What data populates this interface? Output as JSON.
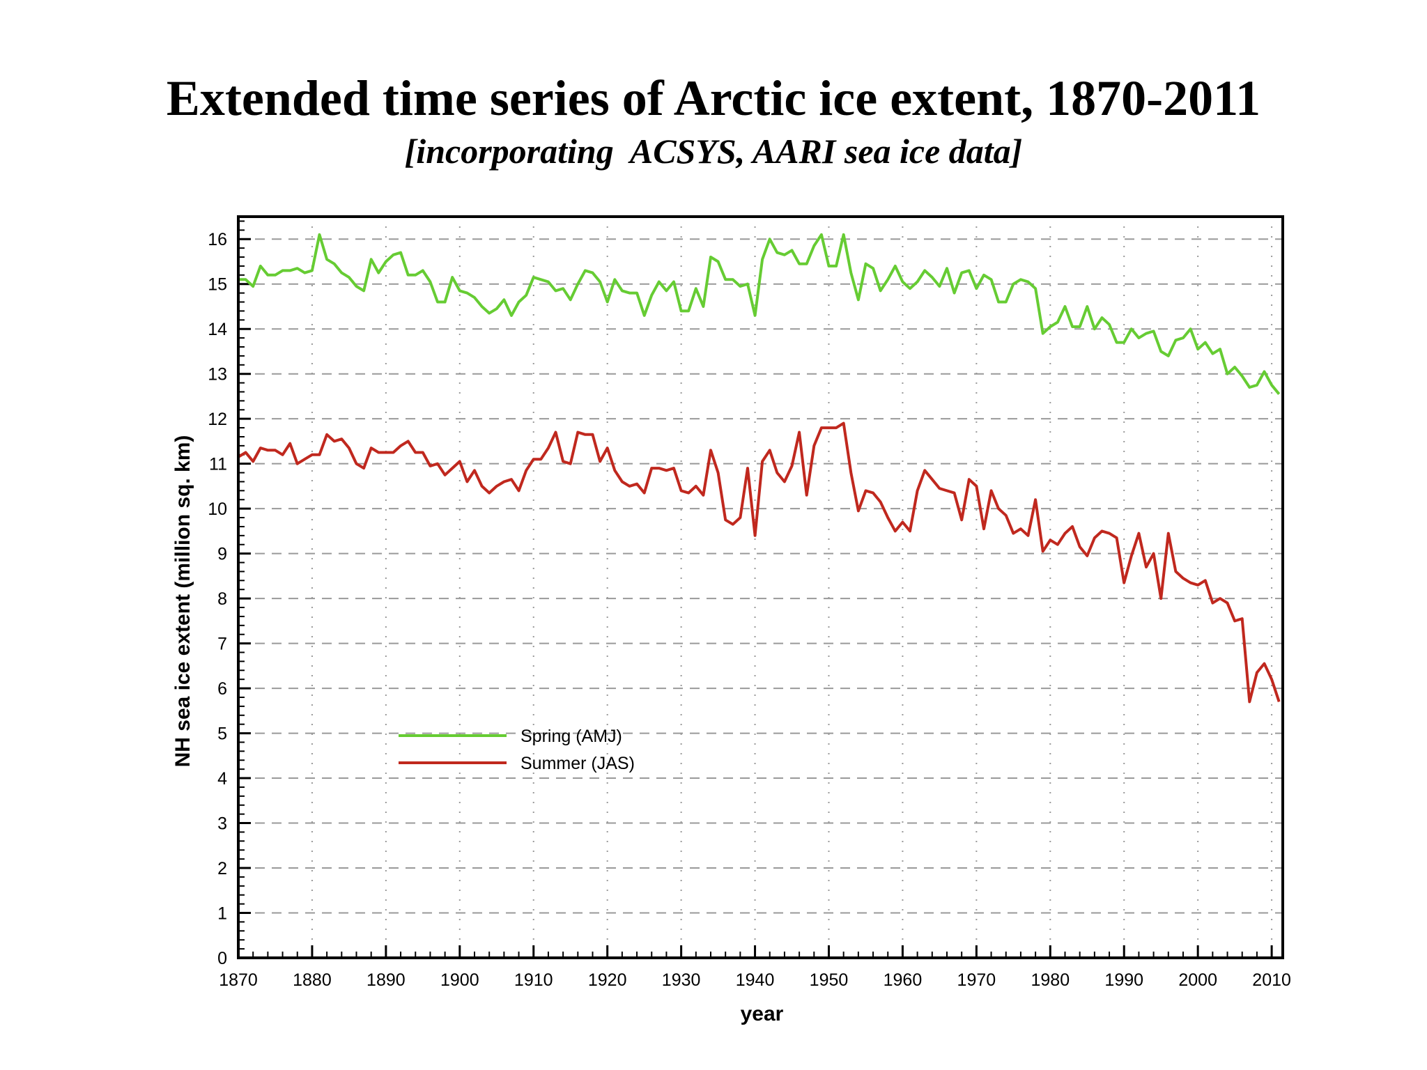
{
  "chart_data": {
    "type": "line",
    "title": "Extended time series of Arctic ice extent, 1870-2011",
    "subtitle": "[incorporating  ACSYS, AARI sea ice data]",
    "xlabel": "year",
    "ylabel": "NH sea ice extent (million sq. km)",
    "xlim": [
      1870,
      2011
    ],
    "ylim": [
      0,
      16.5
    ],
    "xticks": [
      1870,
      1880,
      1890,
      1900,
      1910,
      1920,
      1930,
      1940,
      1950,
      1960,
      1970,
      1980,
      1990,
      2000,
      2010
    ],
    "yticks": [
      0,
      1,
      2,
      3,
      4,
      5,
      6,
      7,
      8,
      9,
      10,
      11,
      12,
      13,
      14,
      15,
      16
    ],
    "grid": true,
    "legend_position": "lower-left",
    "x_start": 1870,
    "series": [
      {
        "name": "Spring (AMJ)",
        "color": "#66cc33",
        "values": [
          15.1,
          15.1,
          14.95,
          15.4,
          15.2,
          15.2,
          15.3,
          15.3,
          15.35,
          15.25,
          15.3,
          16.1,
          15.55,
          15.45,
          15.25,
          15.15,
          14.95,
          14.85,
          15.55,
          15.25,
          15.5,
          15.65,
          15.7,
          15.2,
          15.2,
          15.3,
          15.05,
          14.6,
          14.6,
          15.15,
          14.85,
          14.8,
          14.7,
          14.5,
          14.35,
          14.45,
          14.65,
          14.3,
          14.6,
          14.75,
          15.15,
          15.1,
          15.05,
          14.85,
          14.9,
          14.65,
          15.0,
          15.3,
          15.25,
          15.05,
          14.6,
          15.1,
          14.85,
          14.8,
          14.8,
          14.3,
          14.75,
          15.05,
          14.85,
          15.05,
          14.4,
          14.4,
          14.9,
          14.5,
          15.6,
          15.5,
          15.1,
          15.1,
          14.95,
          15.0,
          14.3,
          15.55,
          16.0,
          15.7,
          15.65,
          15.75,
          15.45,
          15.45,
          15.85,
          16.1,
          15.4,
          15.4,
          16.1,
          15.25,
          14.65,
          15.45,
          15.35,
          14.85,
          15.1,
          15.4,
          15.05,
          14.9,
          15.05,
          15.3,
          15.15,
          14.95,
          15.35,
          14.8,
          15.25,
          15.3,
          14.9,
          15.2,
          15.1,
          14.6,
          14.6,
          15.0,
          15.1,
          15.05,
          14.9,
          13.9,
          14.05,
          14.15,
          14.5,
          14.05,
          14.05,
          14.5,
          14.0,
          14.25,
          14.1,
          13.7,
          13.7,
          14.0,
          13.8,
          13.9,
          13.95,
          13.5,
          13.4,
          13.75,
          13.8,
          14.0,
          13.55,
          13.7,
          13.45,
          13.55,
          13.0,
          13.15,
          12.95,
          12.7,
          12.75,
          13.05,
          12.75,
          12.55
        ]
      },
      {
        "name": "Summer (JAS)",
        "color": "#c0281e",
        "values": [
          11.15,
          11.25,
          11.05,
          11.35,
          11.3,
          11.3,
          11.2,
          11.45,
          11.0,
          11.1,
          11.2,
          11.2,
          11.65,
          11.5,
          11.55,
          11.35,
          11.0,
          10.9,
          11.35,
          11.25,
          11.25,
          11.25,
          11.4,
          11.5,
          11.25,
          11.25,
          10.95,
          11.0,
          10.75,
          10.9,
          11.05,
          10.6,
          10.85,
          10.5,
          10.35,
          10.5,
          10.6,
          10.65,
          10.4,
          10.85,
          11.1,
          11.1,
          11.35,
          11.7,
          11.05,
          11.0,
          11.7,
          11.65,
          11.65,
          11.05,
          11.35,
          10.85,
          10.6,
          10.5,
          10.55,
          10.35,
          10.9,
          10.9,
          10.85,
          10.9,
          10.4,
          10.35,
          10.5,
          10.3,
          11.3,
          10.8,
          9.75,
          9.65,
          9.8,
          10.9,
          9.4,
          11.05,
          11.3,
          10.8,
          10.6,
          10.95,
          11.7,
          10.3,
          11.4,
          11.8,
          11.8,
          11.8,
          11.9,
          10.8,
          9.95,
          10.4,
          10.35,
          10.15,
          9.8,
          9.5,
          9.7,
          9.5,
          10.4,
          10.85,
          10.65,
          10.45,
          10.4,
          10.35,
          9.75,
          10.65,
          10.5,
          9.55,
          10.4,
          10.0,
          9.85,
          9.45,
          9.55,
          9.4,
          10.2,
          9.05,
          9.3,
          9.2,
          9.45,
          9.6,
          9.15,
          8.95,
          9.35,
          9.5,
          9.45,
          9.35,
          8.35,
          8.95,
          9.45,
          8.7,
          9.0,
          8.0,
          9.45,
          8.6,
          8.45,
          8.35,
          8.3,
          8.4,
          7.9,
          8.0,
          7.9,
          7.5,
          7.55,
          5.7,
          6.35,
          6.55,
          6.2,
          5.7
        ]
      }
    ]
  }
}
